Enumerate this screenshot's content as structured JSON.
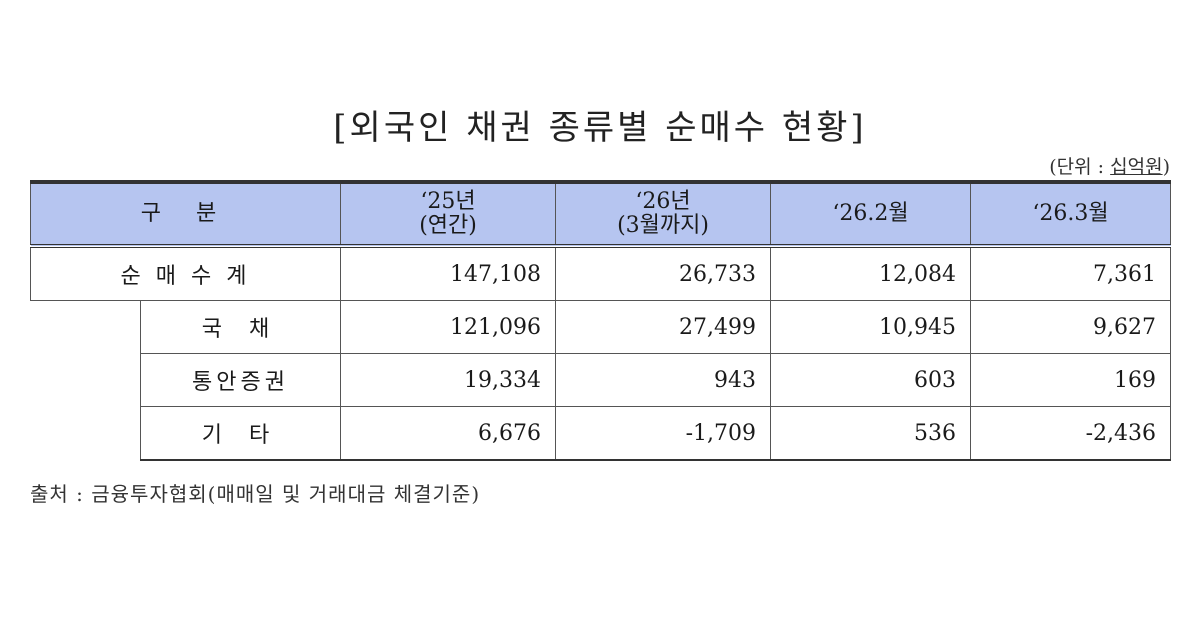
{
  "title": "[외국인 채권 종류별 순매수 현황]",
  "unit": {
    "prefix": "(단위 : ",
    "value": "십억원",
    "suffix": ")"
  },
  "table": {
    "headers": [
      {
        "line1": "구 분",
        "line2": ""
      },
      {
        "line1": "‘25년",
        "line2": "(연간)"
      },
      {
        "line1": "‘26년",
        "line2": "(3월까지)"
      },
      {
        "line1": "‘26.2월",
        "line2": ""
      },
      {
        "line1": "‘26.3월",
        "line2": ""
      }
    ],
    "rows": [
      {
        "label": "순 매 수 계",
        "values": [
          "147,108",
          "26,733",
          "12,084",
          "7,361"
        ]
      },
      {
        "label": "국 채",
        "values": [
          "121,096",
          "27,499",
          "10,945",
          "9,627"
        ]
      },
      {
        "label": "통안증권",
        "values": [
          "19,334",
          "943",
          "603",
          "169"
        ]
      },
      {
        "label": "기 타",
        "values": [
          "6,676",
          "-1,709",
          "536",
          "-2,436"
        ]
      }
    ]
  },
  "source": "출처 : 금융투자협회(매매일 및 거래대금 체결기준)"
}
